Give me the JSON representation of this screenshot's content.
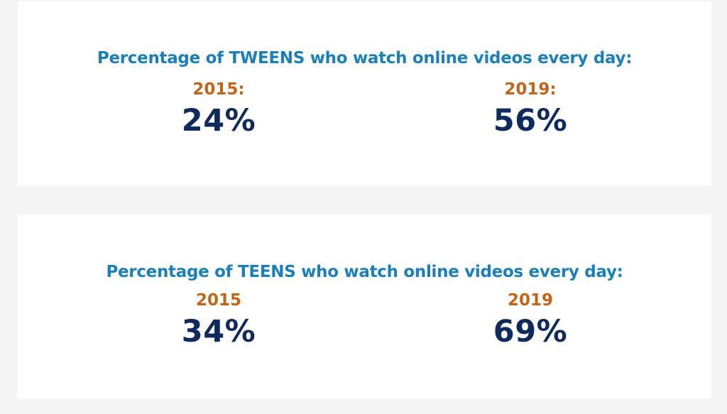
{
  "colors": {
    "heading": "#1c7fb8",
    "year": "#c0651b",
    "value": "#0f2a5c",
    "card": "#ffffff",
    "background": "#f4f4f4"
  },
  "tweens": {
    "heading": "Percentage of TWEENS who watch online videos every day:",
    "left": {
      "year": "2015:",
      "value": "24%"
    },
    "right": {
      "year": "2019:",
      "value": "56%"
    }
  },
  "teens": {
    "heading": "Percentage of TEENS who watch online videos every day:",
    "left": {
      "year": "2015",
      "value": "34%"
    },
    "right": {
      "year": "2019",
      "value": "69%"
    }
  }
}
